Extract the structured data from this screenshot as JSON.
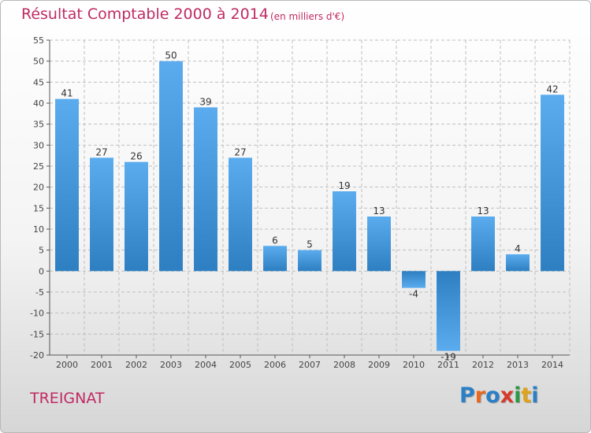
{
  "header": {
    "title": "Résultat Comptable 2000 à 2014",
    "subtitle": "(en milliers d'€)"
  },
  "footer": {
    "commune": "TREIGNAT",
    "logo_text": "Proxiti",
    "logo_colors": [
      "#2a7fc6",
      "#e8681f",
      "#2a7fc6",
      "#d63a2a",
      "#2a9a48",
      "#e0a41a",
      "#2a7fc6"
    ]
  },
  "colors": {
    "bar_light": "#5aacee",
    "bar_dark": "#2d7fc1",
    "grid": "#bfbfbf",
    "accent": "#c02a62"
  },
  "chart_data": {
    "type": "bar",
    "title": "Résultat Comptable 2000 à 2014",
    "subtitle": "(en milliers d'€)",
    "categories": [
      "2000",
      "2001",
      "2002",
      "2003",
      "2004",
      "2005",
      "2006",
      "2007",
      "2008",
      "2009",
      "2010",
      "2011",
      "2012",
      "2013",
      "2014"
    ],
    "values": [
      41,
      27,
      26,
      50,
      39,
      27,
      6,
      5,
      19,
      13,
      -4,
      -19,
      13,
      4,
      42
    ],
    "data_labels": [
      "41",
      "27",
      "26",
      "50",
      "39",
      "27",
      "6",
      "5",
      "19",
      "13",
      "-4",
      "-19",
      "13",
      "4",
      "42"
    ],
    "ylim": [
      -20,
      55
    ],
    "yticks": [
      55,
      50,
      45,
      40,
      35,
      30,
      25,
      20,
      15,
      10,
      5,
      0,
      -5,
      -10,
      -15,
      -20
    ],
    "grid": true,
    "legend": "none"
  }
}
